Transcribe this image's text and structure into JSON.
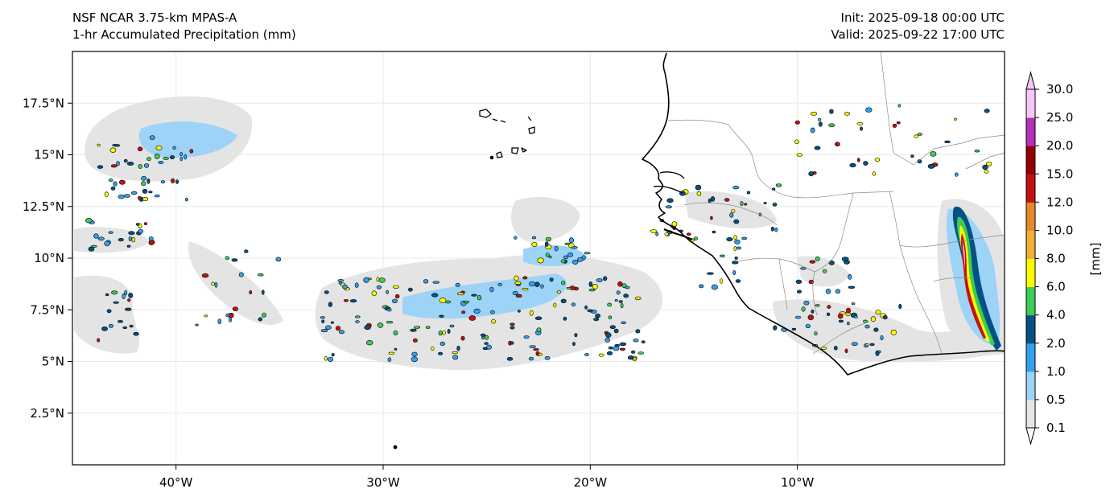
{
  "header": {
    "model": "NSF NCAR 3.75-km MPAS-A",
    "field": "1-hr Accumulated Precipitation (mm)",
    "init": "Init: 2025-09-18 00:00 UTC",
    "valid": "Valid: 2025-09-22 17:00 UTC"
  },
  "map": {
    "extent": {
      "lon_min": -45,
      "lon_max": 0,
      "lat_min": 0,
      "lat_max": 20
    },
    "lat_ticks": [
      {
        "value": 17.5,
        "label": "17.5°N"
      },
      {
        "value": 15,
        "label": "15°N"
      },
      {
        "value": 12.5,
        "label": "12.5°N"
      },
      {
        "value": 10,
        "label": "10°N"
      },
      {
        "value": 7.5,
        "label": "7.5°N"
      },
      {
        "value": 5,
        "label": "5°N"
      },
      {
        "value": 2.5,
        "label": "2.5°N"
      }
    ],
    "lon_ticks": [
      {
        "value": -40,
        "label": "40°W"
      },
      {
        "value": -30,
        "label": "30°W"
      },
      {
        "value": -20,
        "label": "20°W"
      },
      {
        "value": -10,
        "label": "10°W"
      }
    ]
  },
  "colorbar": {
    "unit_label": "[mm]",
    "levels": [
      "0.1",
      "0.5",
      "1.0",
      "2.0",
      "4.0",
      "6.0",
      "8.0",
      "10.0",
      "12.0",
      "15.0",
      "20.0",
      "25.0",
      "30.0"
    ],
    "colors": [
      "#e6e6e6",
      "#9dd3f7",
      "#33a0ef",
      "#045184",
      "#3ccd55",
      "#fbfb00",
      "#f3ae36",
      "#e4892b",
      "#c41010",
      "#930000",
      "#b330b8",
      "#f6c6f8"
    ],
    "extend_min_color": "#ffffff",
    "extend_max_color": "#f6c6f8"
  }
}
